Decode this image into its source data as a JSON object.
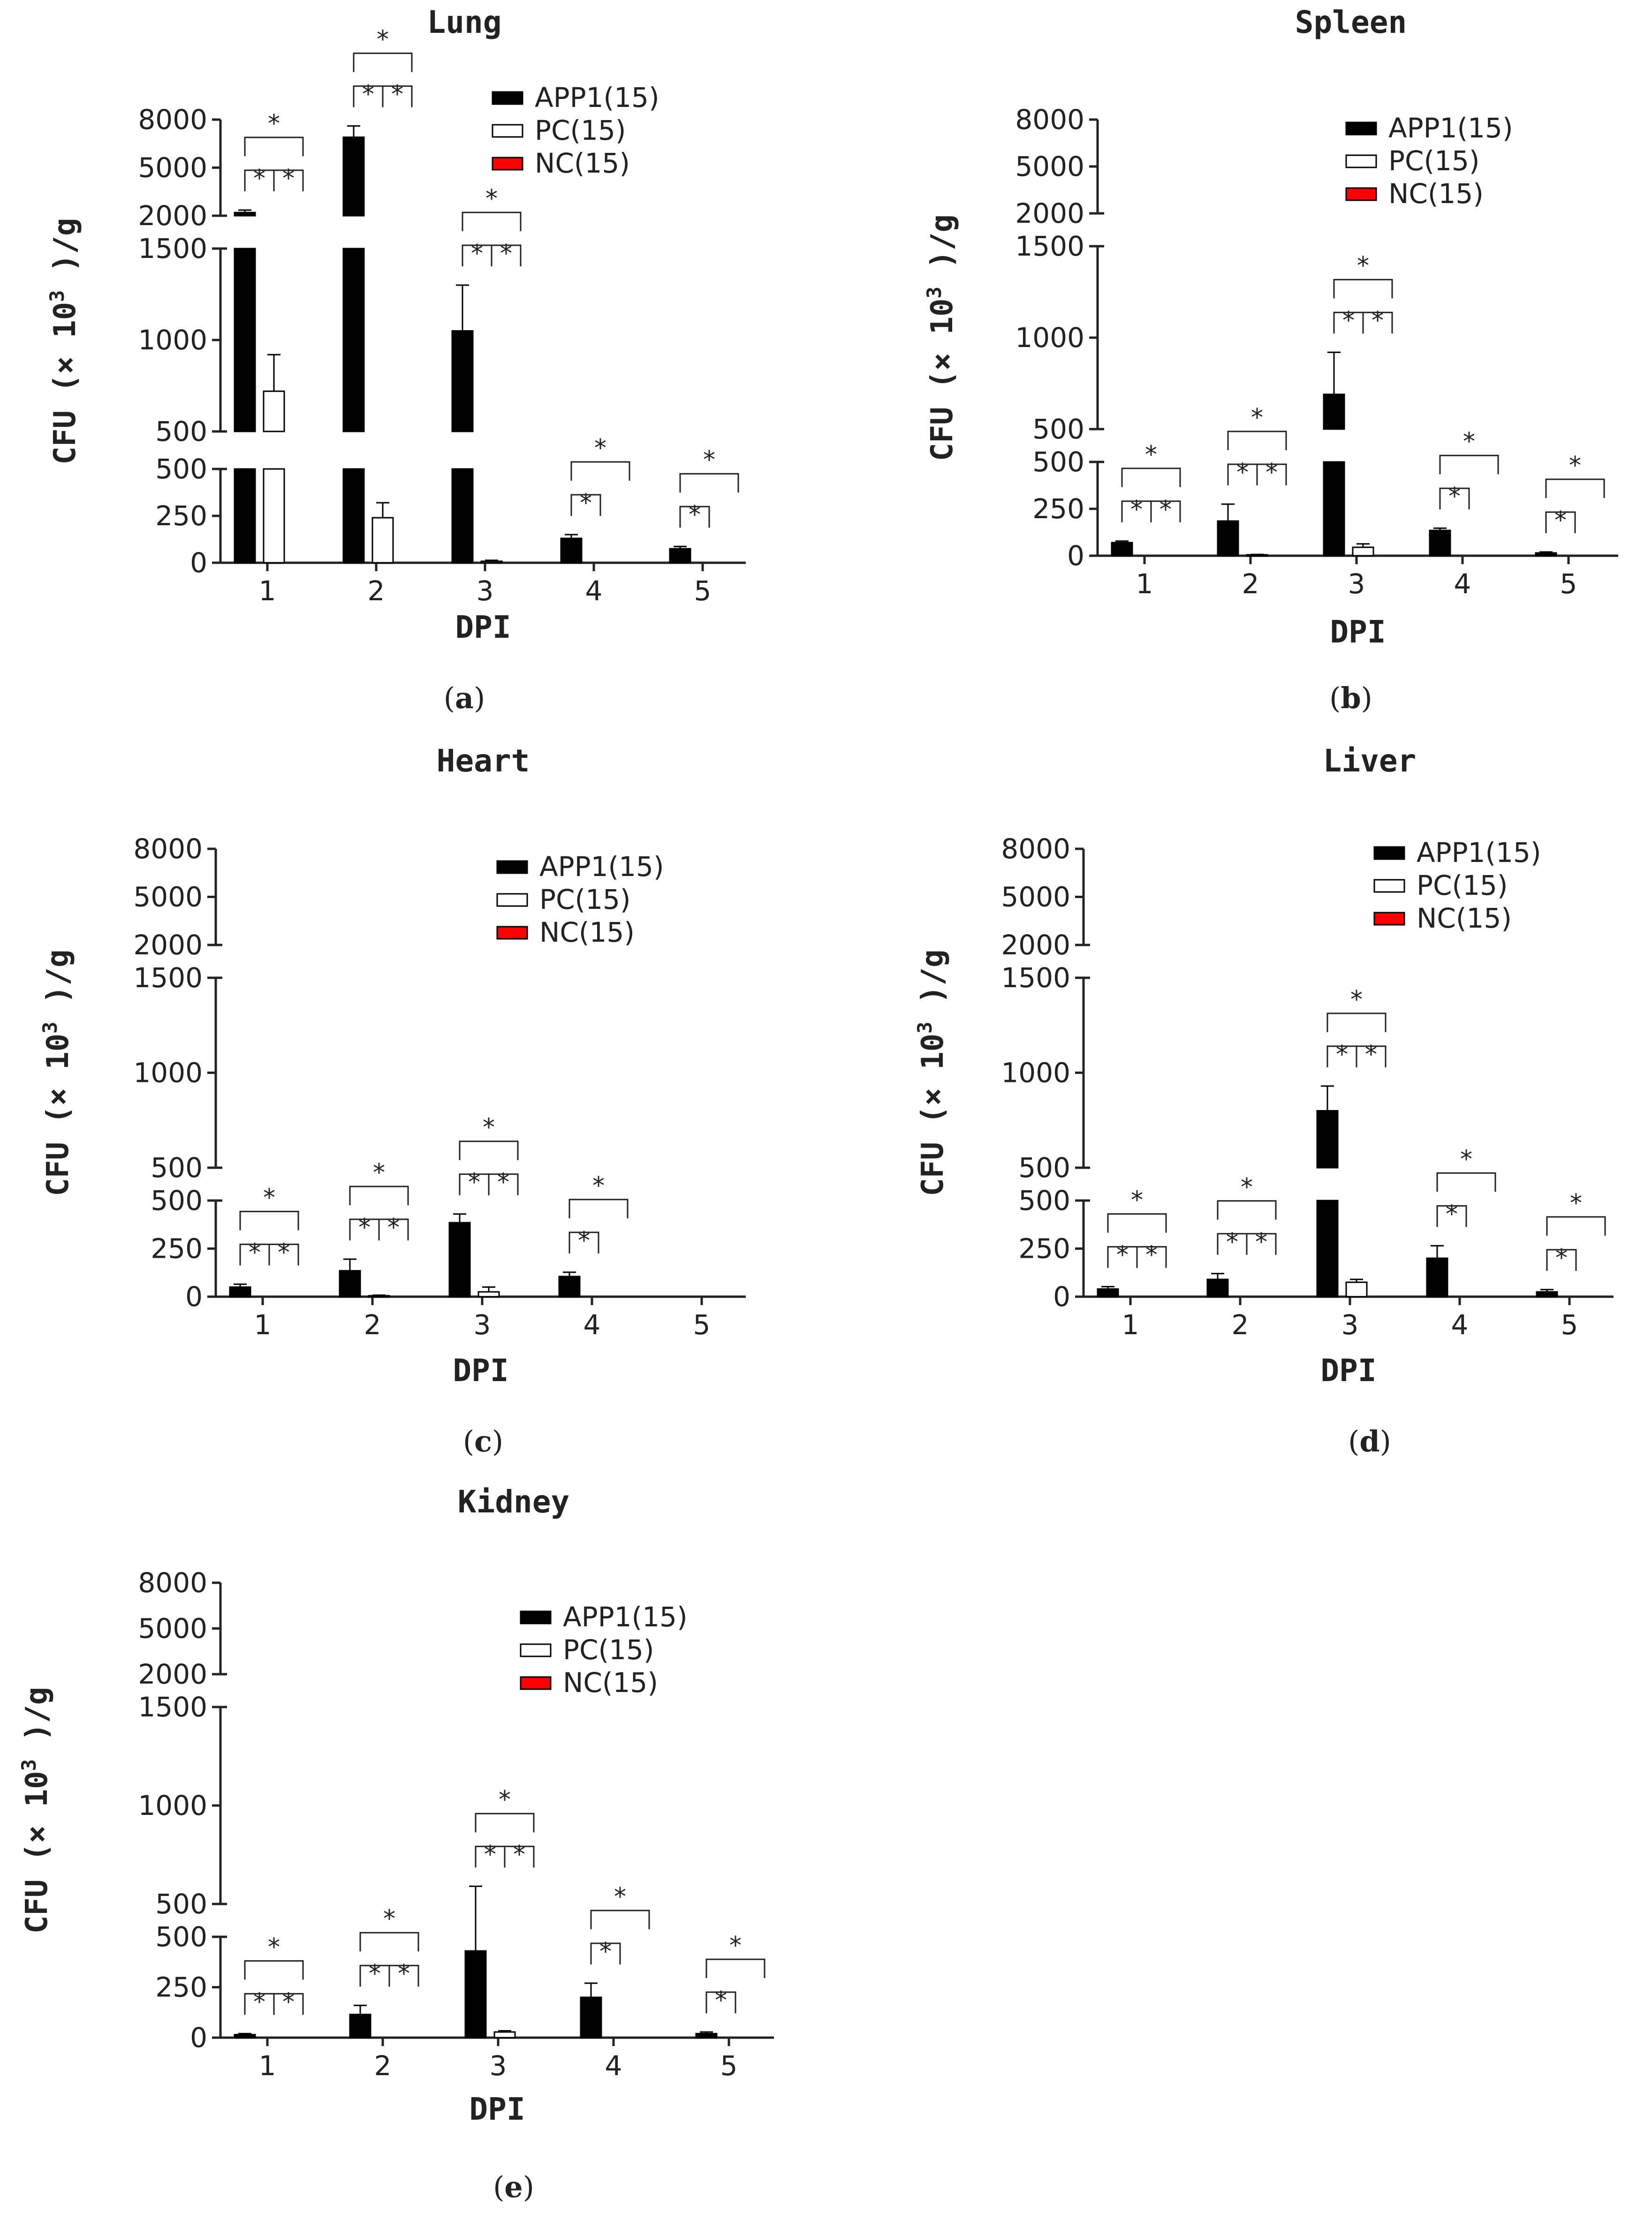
{
  "figure": {
    "legend": [
      "APP1(15)",
      "PC(15)",
      "NC(15)"
    ],
    "colors": {
      "APP1": "#000000",
      "PC": "#ffffff",
      "NC": "#ff0000"
    },
    "y_ticks_top": [
      "8000",
      "5000",
      "2000"
    ],
    "y_ticks_mid": [
      "1500",
      "1000",
      "500"
    ],
    "y_ticks_bottom": [
      "500",
      "250",
      "0"
    ],
    "ylabel_prefix": "CFU  (× 10",
    "ylabel_exp": "3",
    "ylabel_suffix": "  )/g",
    "xlabel": "DPI",
    "star": "*"
  },
  "chart_data": [
    {
      "type": "bar",
      "panel": "a",
      "title": "Lung",
      "categories": [
        "1",
        "2",
        "3",
        "4",
        "5"
      ],
      "xlabel": "DPI",
      "ylabel": "CFU (× 10³)/g",
      "ylim": [
        0,
        8000
      ],
      "axis_breaks": [
        [
          500,
          500
        ],
        [
          1500,
          2000
        ]
      ],
      "series": [
        {
          "name": "APP1(15)",
          "values": [
            2200,
            6900,
            1050,
            130,
            75
          ],
          "errors": [
            150,
            700,
            250,
            20,
            12
          ]
        },
        {
          "name": "PC(15)",
          "values": [
            720,
            240,
            8,
            0,
            0
          ],
          "errors": [
            200,
            80,
            5,
            0,
            0
          ]
        },
        {
          "name": "NC(15)",
          "values": [
            0,
            0,
            0,
            0,
            0
          ],
          "errors": [
            0,
            0,
            0,
            0,
            0
          ]
        }
      ],
      "significance": [
        [
          1,
          1,
          1
        ],
        [
          1,
          1,
          1
        ],
        [
          1,
          1,
          1
        ],
        [
          1,
          0,
          1
        ],
        [
          1,
          0,
          1
        ]
      ]
    },
    {
      "type": "bar",
      "panel": "b",
      "title": "Spleen",
      "categories": [
        "1",
        "2",
        "3",
        "4",
        "5"
      ],
      "xlabel": "DPI",
      "ylabel": "CFU (× 10³)/g",
      "ylim": [
        0,
        8000
      ],
      "axis_breaks": [
        [
          500,
          500
        ],
        [
          1500,
          2000
        ]
      ],
      "series": [
        {
          "name": "APP1(15)",
          "values": [
            70,
            185,
            690,
            135,
            15
          ],
          "errors": [
            8,
            90,
            230,
            12,
            5
          ]
        },
        {
          "name": "PC(15)",
          "values": [
            0,
            5,
            45,
            0,
            0
          ],
          "errors": [
            0,
            2,
            18,
            0,
            0
          ]
        },
        {
          "name": "NC(15)",
          "values": [
            0,
            0,
            0,
            0,
            0
          ],
          "errors": [
            0,
            0,
            0,
            0,
            0
          ]
        }
      ],
      "significance": [
        [
          1,
          1,
          1
        ],
        [
          1,
          1,
          1
        ],
        [
          1,
          1,
          1
        ],
        [
          1,
          0,
          1
        ],
        [
          1,
          0,
          1
        ]
      ]
    },
    {
      "type": "bar",
      "panel": "c",
      "title": "Heart",
      "categories": [
        "1",
        "2",
        "3",
        "4",
        "5"
      ],
      "xlabel": "DPI",
      "ylabel": "CFU (× 10³)/g",
      "ylim": [
        0,
        8000
      ],
      "axis_breaks": [
        [
          500,
          500
        ],
        [
          1500,
          2000
        ]
      ],
      "series": [
        {
          "name": "APP1(15)",
          "values": [
            50,
            135,
            385,
            105,
            0
          ],
          "errors": [
            15,
            60,
            45,
            22,
            0
          ]
        },
        {
          "name": "PC(15)",
          "values": [
            0,
            5,
            25,
            0,
            0
          ],
          "errors": [
            0,
            3,
            25,
            0,
            0
          ]
        },
        {
          "name": "NC(15)",
          "values": [
            0,
            0,
            0,
            0,
            0
          ],
          "errors": [
            0,
            0,
            0,
            0,
            0
          ]
        }
      ],
      "significance": [
        [
          1,
          1,
          1
        ],
        [
          1,
          1,
          1
        ],
        [
          1,
          1,
          1
        ],
        [
          1,
          0,
          1
        ],
        [
          0,
          0,
          0
        ]
      ]
    },
    {
      "type": "bar",
      "panel": "d",
      "title": "Liver",
      "categories": [
        "1",
        "2",
        "3",
        "4",
        "5"
      ],
      "xlabel": "DPI",
      "ylabel": "CFU (× 10³)/g",
      "ylim": [
        0,
        8000
      ],
      "axis_breaks": [
        [
          500,
          500
        ],
        [
          1500,
          2000
        ]
      ],
      "series": [
        {
          "name": "APP1(15)",
          "values": [
            40,
            90,
            800,
            200,
            25
          ],
          "errors": [
            12,
            30,
            130,
            65,
            12
          ]
        },
        {
          "name": "PC(15)",
          "values": [
            0,
            0,
            75,
            0,
            0
          ],
          "errors": [
            0,
            0,
            15,
            0,
            0
          ]
        },
        {
          "name": "NC(15)",
          "values": [
            0,
            0,
            0,
            0,
            0
          ],
          "errors": [
            0,
            0,
            0,
            0,
            0
          ]
        }
      ],
      "significance": [
        [
          1,
          1,
          1
        ],
        [
          1,
          1,
          1
        ],
        [
          1,
          1,
          1
        ],
        [
          1,
          0,
          1
        ],
        [
          1,
          0,
          1
        ]
      ]
    },
    {
      "type": "bar",
      "panel": "e",
      "title": "Kidney",
      "categories": [
        "1",
        "2",
        "3",
        "4",
        "5"
      ],
      "xlabel": "DPI",
      "ylabel": "CFU (× 10³)/g",
      "ylim": [
        0,
        8000
      ],
      "axis_breaks": [
        [
          500,
          500
        ],
        [
          1500,
          2000
        ]
      ],
      "series": [
        {
          "name": "APP1(15)",
          "values": [
            15,
            115,
            430,
            200,
            20
          ],
          "errors": [
            5,
            45,
            160,
            70,
            8
          ]
        },
        {
          "name": "PC(15)",
          "values": [
            0,
            0,
            28,
            0,
            0
          ],
          "errors": [
            0,
            0,
            6,
            0,
            0
          ]
        },
        {
          "name": "NC(15)",
          "values": [
            0,
            0,
            0,
            0,
            0
          ],
          "errors": [
            0,
            0,
            0,
            0,
            0
          ]
        }
      ],
      "significance": [
        [
          1,
          1,
          1
        ],
        [
          1,
          1,
          1
        ],
        [
          1,
          1,
          1
        ],
        [
          1,
          0,
          1
        ],
        [
          1,
          0,
          1
        ]
      ]
    }
  ]
}
